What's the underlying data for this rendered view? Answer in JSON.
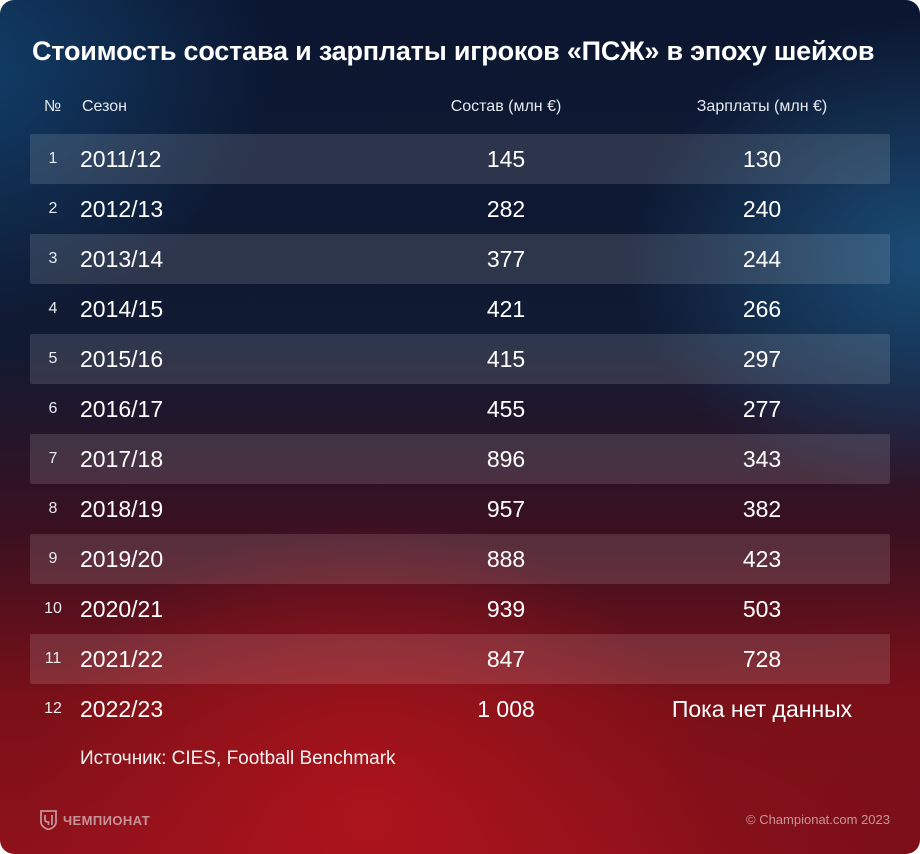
{
  "chart_data": {
    "type": "table",
    "title": "Стоимость состава и зарплаты игроков «ПСЖ» в эпоху шейхов",
    "columns": [
      "№",
      "Сезон",
      "Состав (млн €)",
      "Зарплаты  (млн €)"
    ],
    "rows": [
      {
        "num": "1",
        "season": "2011/12",
        "squad": "145",
        "wages": "130"
      },
      {
        "num": "2",
        "season": "2012/13",
        "squad": "282",
        "wages": "240"
      },
      {
        "num": "3",
        "season": "2013/14",
        "squad": "377",
        "wages": "244"
      },
      {
        "num": "4",
        "season": "2014/15",
        "squad": "421",
        "wages": "266"
      },
      {
        "num": "5",
        "season": "2015/16",
        "squad": "415",
        "wages": "297"
      },
      {
        "num": "6",
        "season": "2016/17",
        "squad": "455",
        "wages": "277"
      },
      {
        "num": "7",
        "season": "2017/18",
        "squad": "896",
        "wages": "343"
      },
      {
        "num": "8",
        "season": "2018/19",
        "squad": "957",
        "wages": "382"
      },
      {
        "num": "9",
        "season": "2019/20",
        "squad": "888",
        "wages": "423"
      },
      {
        "num": "10",
        "season": "2020/21",
        "squad": "939",
        "wages": "503"
      },
      {
        "num": "11",
        "season": "2021/22",
        "squad": "847",
        "wages": "728"
      },
      {
        "num": "12",
        "season": "2022/23",
        "squad": "1 008",
        "wages": "Пока нет данных"
      }
    ],
    "source": "Источник: CIES, Football Benchmark"
  },
  "footer": {
    "logo_text": "ЧЕМПИОНАТ",
    "logo_icon": "championat-logo-icon",
    "copyright": "© Championat.com 2023"
  }
}
